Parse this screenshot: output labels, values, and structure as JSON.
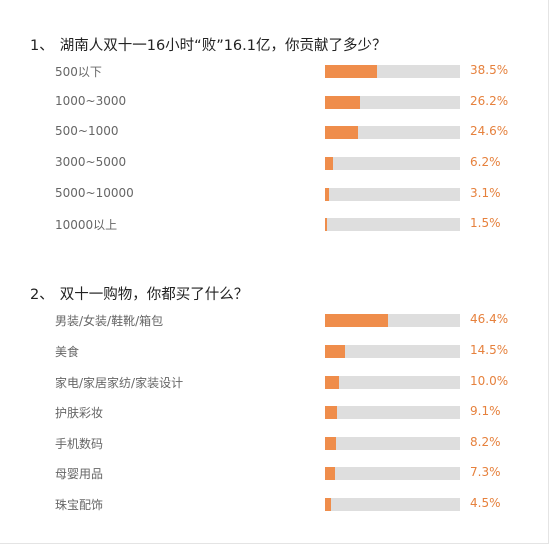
{
  "chart_data": [
    {
      "type": "bar",
      "number": "1、",
      "title": "湖南人双十一16小时“败”16.1亿，你贡献了多少？",
      "categories": [
        "500以下",
        "1000~3000",
        "500~1000",
        "3000~5000",
        "5000~10000",
        "10000以上"
      ],
      "values": [
        38.5,
        26.2,
        24.6,
        6.2,
        3.1,
        1.5
      ],
      "value_labels": [
        "38.5%",
        "26.2%",
        "24.6%",
        "6.2%",
        "3.1%",
        "1.5%"
      ],
      "xlim": [
        0,
        100
      ],
      "orientation": "horizontal",
      "grid": false,
      "colors": {
        "fill": "#ef8d4b",
        "track": "#dedede",
        "value_text": "#e6813d"
      }
    },
    {
      "type": "bar",
      "number": "2、",
      "title": "双十一购物，你都买了什么？",
      "categories": [
        "男装/女装/鞋靴/箱包",
        "美食",
        "家电/家居家纺/家装设计",
        "护肤彩妆",
        "手机数码",
        "母婴用品",
        "珠宝配饰"
      ],
      "values": [
        46.4,
        14.5,
        10.0,
        9.1,
        8.2,
        7.3,
        4.5
      ],
      "value_labels": [
        "46.4%",
        "14.5%",
        "10.0%",
        "9.1%",
        "8.2%",
        "7.3%",
        "4.5%"
      ],
      "xlim": [
        0,
        100
      ],
      "orientation": "horizontal",
      "grid": false,
      "colors": {
        "fill": "#ef8d4b",
        "track": "#dedede",
        "value_text": "#e6813d"
      }
    }
  ]
}
